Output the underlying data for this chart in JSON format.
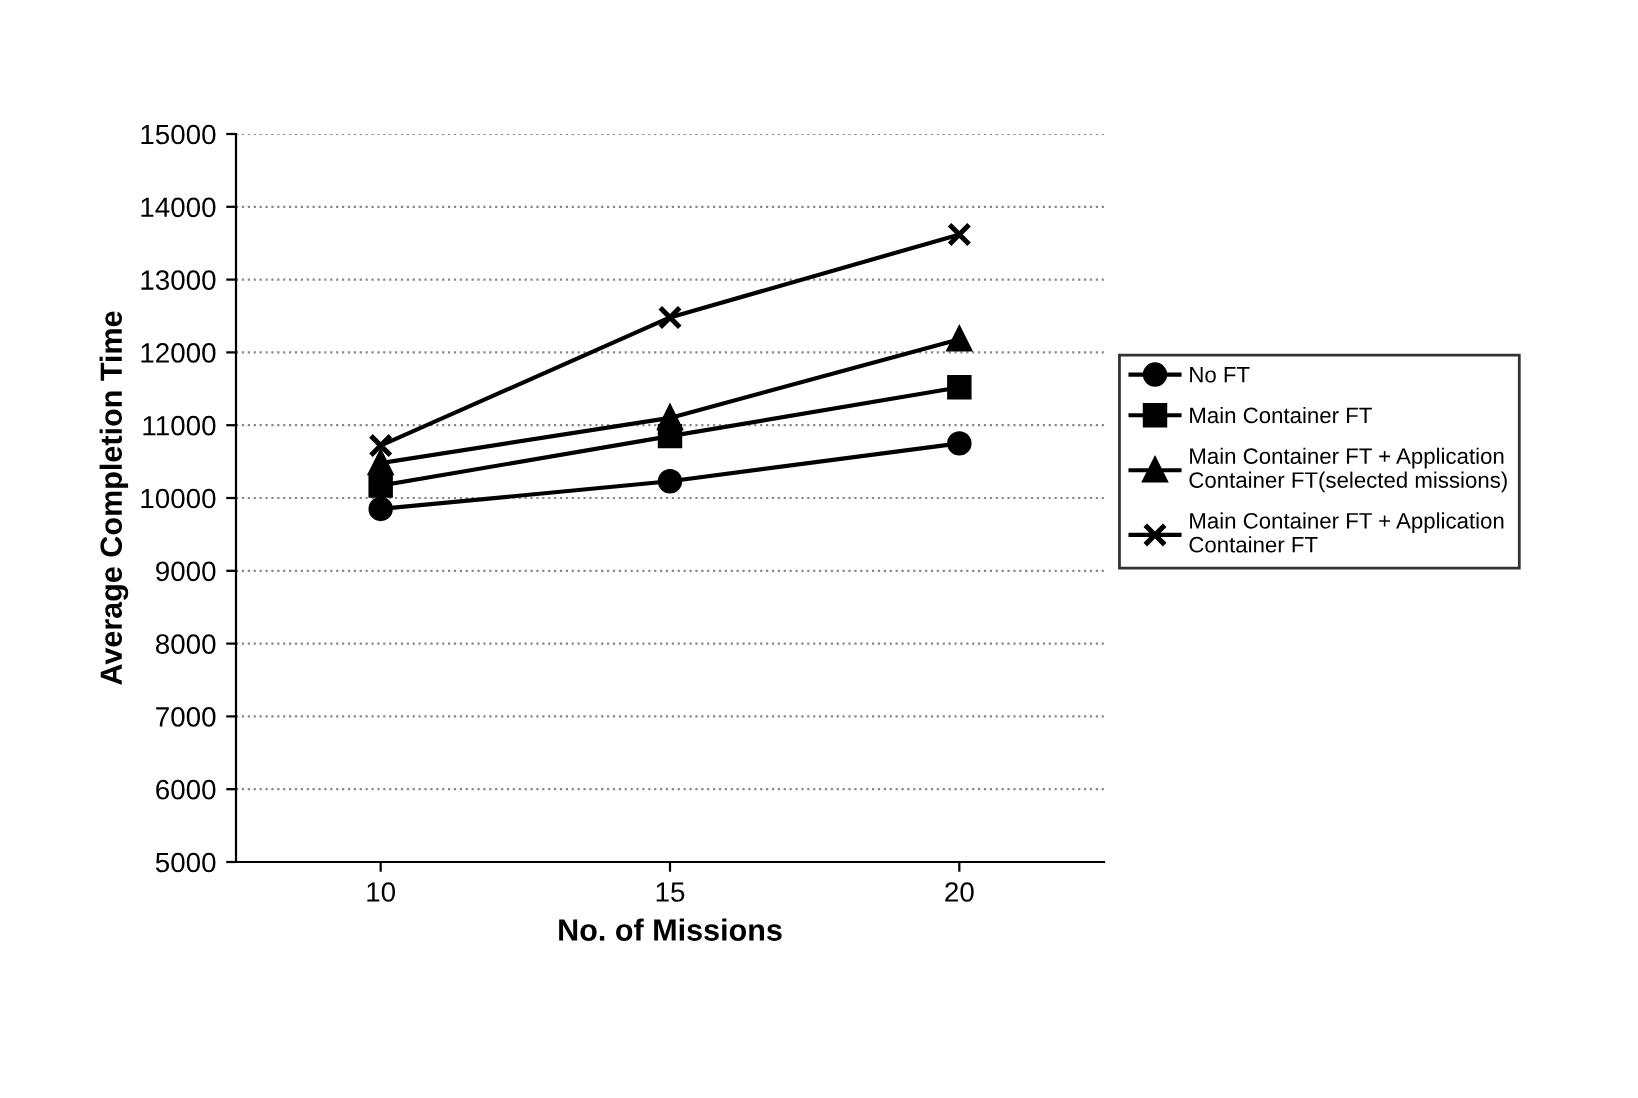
{
  "chart_data": {
    "type": "line",
    "xlabel": "No. of Missions",
    "ylabel": "Average Completion Time",
    "categories": [
      "10",
      "15",
      "20"
    ],
    "ylim": [
      5000,
      15000
    ],
    "yticks": [
      5000,
      6000,
      7000,
      8000,
      9000,
      10000,
      11000,
      12000,
      13000,
      14000,
      15000
    ],
    "grid": "y",
    "legend": "right",
    "line_style": "solid",
    "series": [
      {
        "name": "No FT",
        "color": "#000000",
        "marker": "circle",
        "values": [
          9850,
          10230,
          10750
        ]
      },
      {
        "name": "Main Container FT",
        "color": "#000000",
        "marker": "square",
        "values": [
          10170,
          10850,
          11520
        ]
      },
      {
        "name": "Main Container FT + Application Container FT(selected missions)",
        "color": "#000000",
        "marker": "triangle",
        "values": [
          10480,
          11100,
          12180
        ]
      },
      {
        "name": "Main Container FT + Application Container FT",
        "color": "#000000",
        "marker": "cross",
        "values": [
          10720,
          12480,
          13620
        ]
      }
    ]
  }
}
